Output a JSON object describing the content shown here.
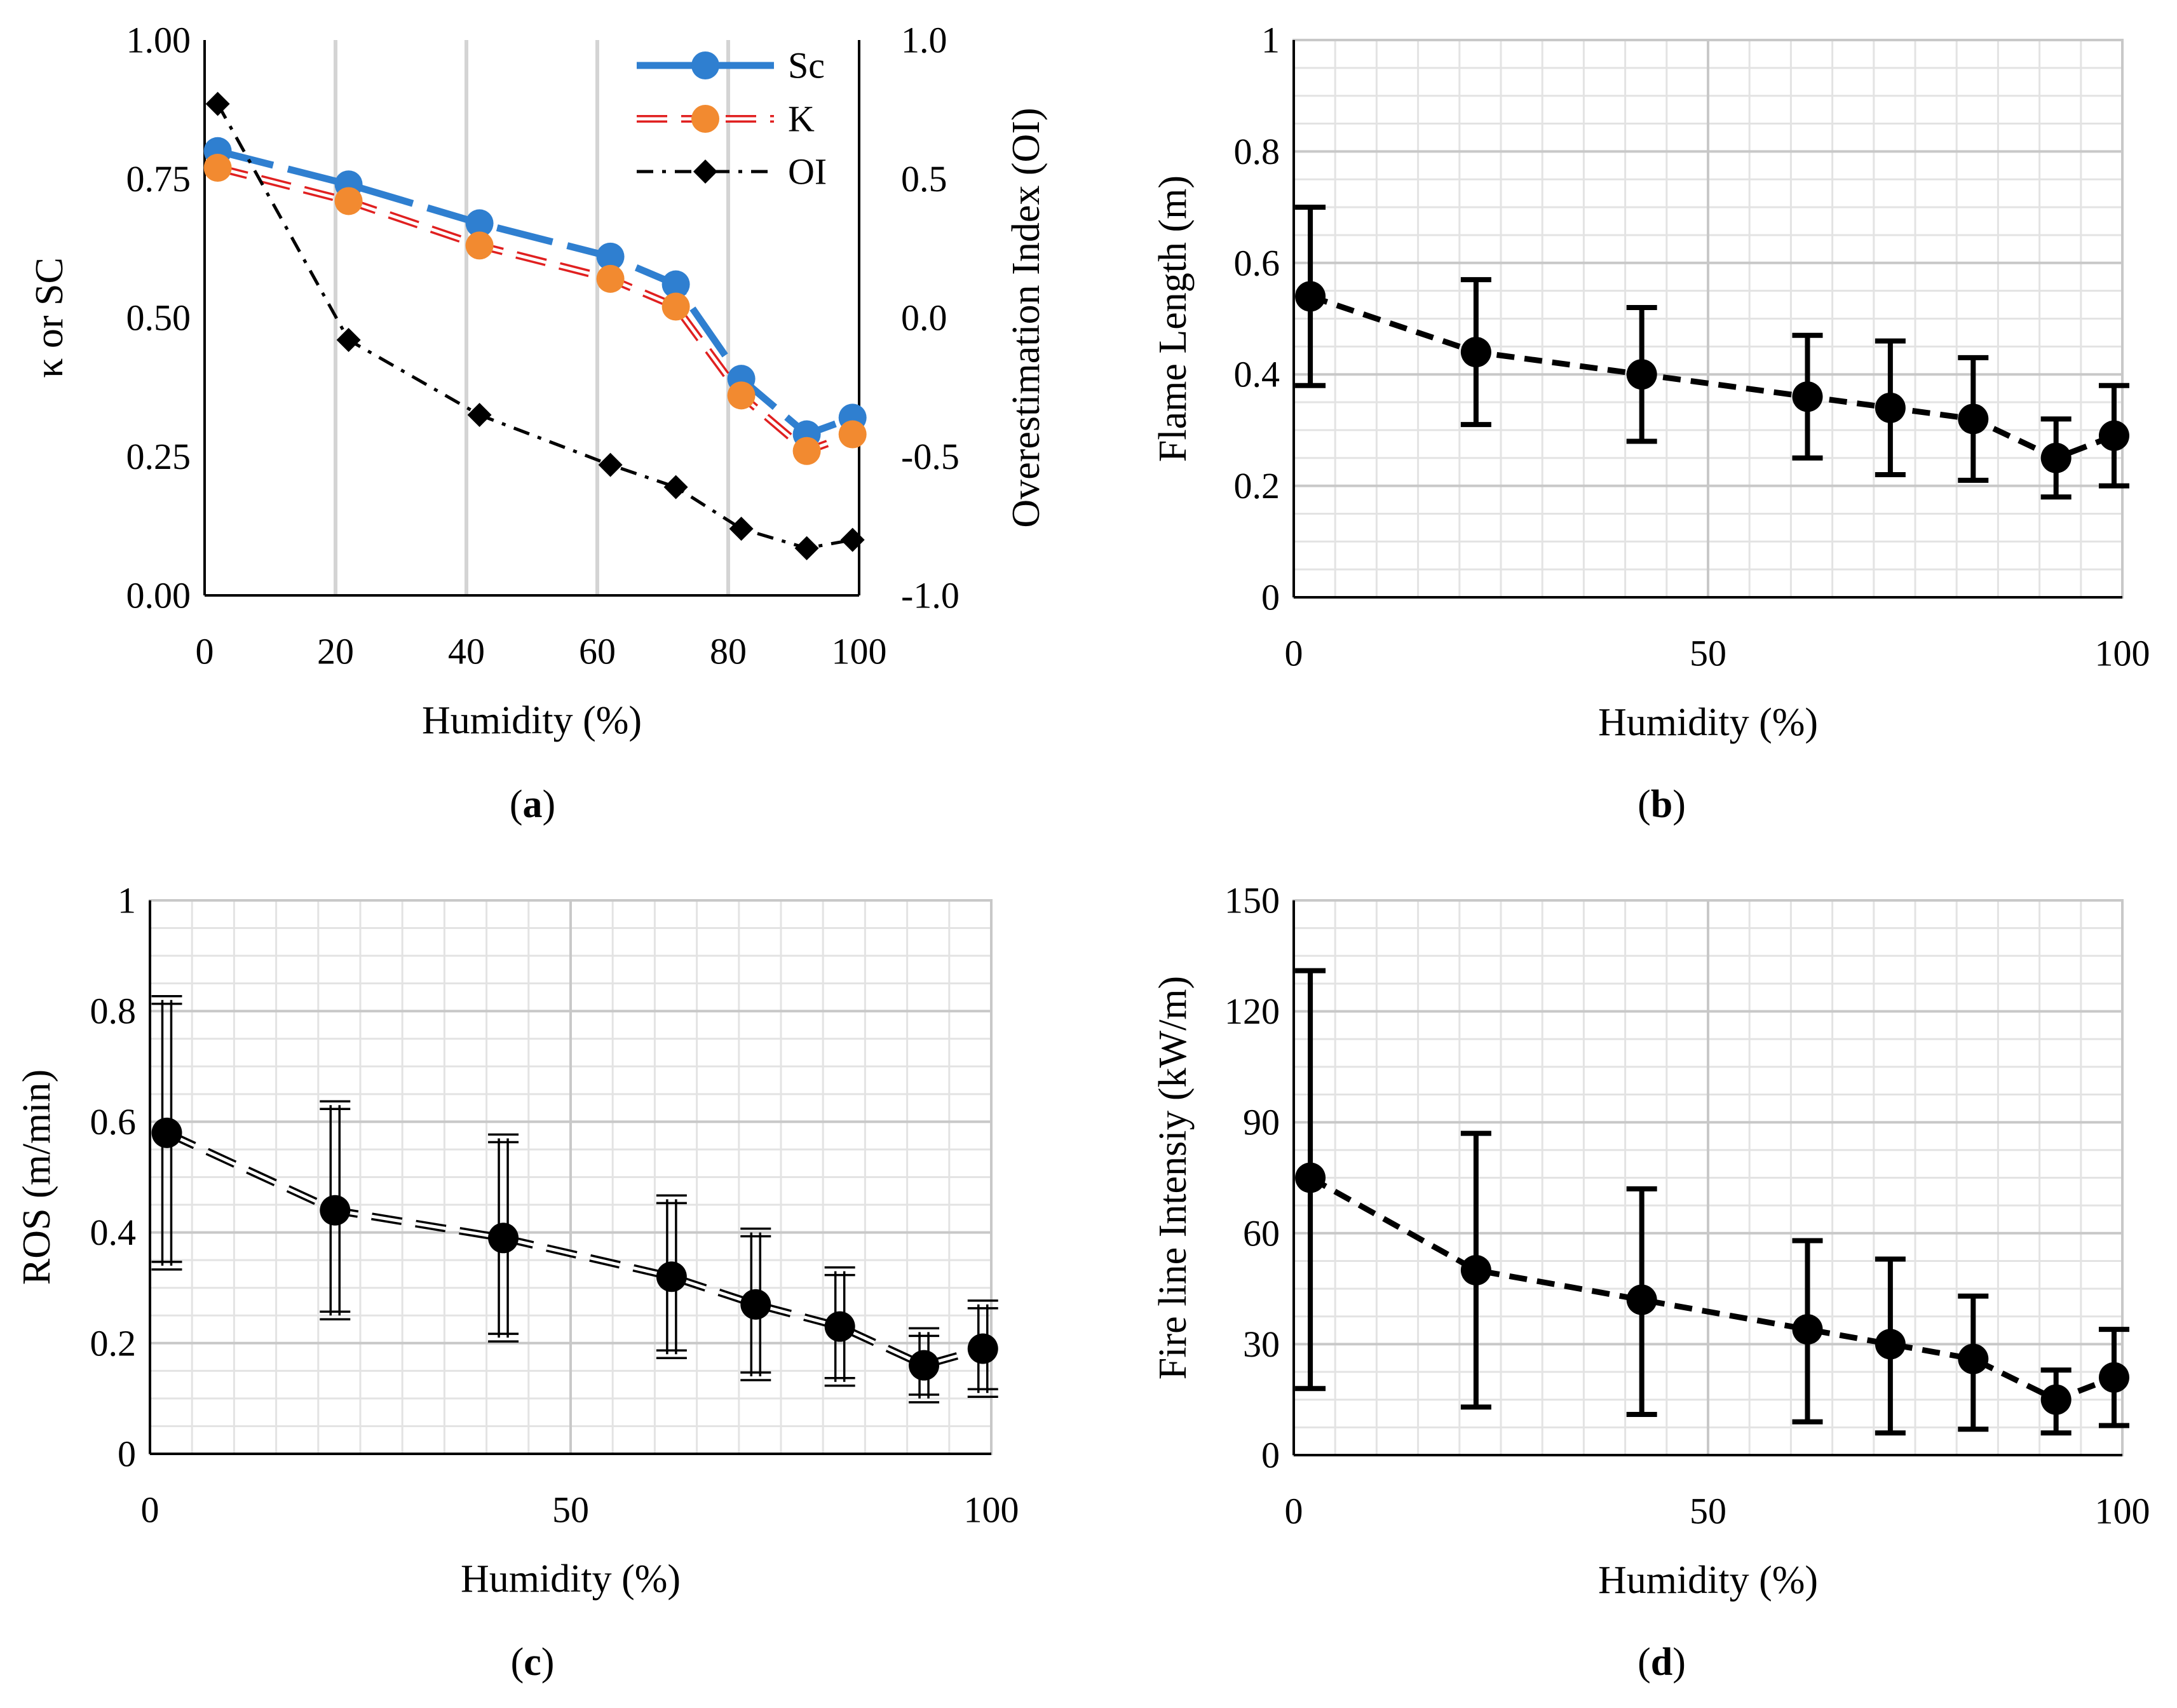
{
  "chart_data": [
    {
      "id": "a",
      "type": "line",
      "caption": "(a)",
      "xlabel": "Humidity (%)",
      "ylabel": "κ or SC",
      "y2label": "Overestimation Index (OI)",
      "xlim": [
        0,
        100
      ],
      "ylim": [
        0,
        1
      ],
      "y2lim": [
        -1,
        1
      ],
      "xticks": [
        0,
        20,
        40,
        60,
        80,
        100
      ],
      "xtick_labels": [
        "0",
        "20",
        "40",
        "60",
        "80",
        "100"
      ],
      "yticks": [
        0,
        0.25,
        0.5,
        0.75,
        1
      ],
      "ytick_labels": [
        "0.00",
        "0.25",
        "0.50",
        "0.75",
        "1.00"
      ],
      "y2ticks": [
        -1,
        -0.5,
        0,
        0.5,
        1
      ],
      "y2tick_labels": [
        "-1.0",
        "-0.5",
        "0.0",
        "0.5",
        "1.0"
      ],
      "x": [
        2,
        22,
        42,
        62,
        72,
        82,
        92,
        99
      ],
      "series": [
        {
          "name": "Sc",
          "axis": "left",
          "color": "#2f7fd0",
          "marker": "circle",
          "line": "long-dash",
          "values": [
            0.8,
            0.74,
            0.67,
            0.61,
            0.56,
            0.39,
            0.29,
            0.32
          ]
        },
        {
          "name": "K",
          "axis": "left",
          "color": "#f28a30",
          "line_color": "#e02020",
          "marker": "circle",
          "line": "double-dash",
          "values": [
            0.77,
            0.71,
            0.63,
            0.57,
            0.52,
            0.36,
            0.26,
            0.29
          ]
        },
        {
          "name": "OI",
          "axis": "right",
          "color": "#000000",
          "marker": "diamond",
          "line": "dash-dot",
          "values": [
            0.77,
            -0.08,
            -0.35,
            -0.53,
            -0.61,
            -0.76,
            -0.83,
            -0.8
          ]
        }
      ],
      "legend": "top-right",
      "grid": "vertical"
    },
    {
      "id": "b",
      "type": "line",
      "caption": "(b)",
      "xlabel": "Humidity (%)",
      "ylabel": "Flame Length (m)",
      "xlim": [
        0,
        100
      ],
      "ylim": [
        0,
        1
      ],
      "xticks": [
        0,
        50,
        100
      ],
      "xtick_labels": [
        "0",
        "50",
        "100"
      ],
      "yticks": [
        0,
        0.2,
        0.4,
        0.6,
        0.8,
        1
      ],
      "ytick_labels": [
        "0",
        "0.2",
        "0.4",
        "0.6",
        "0.8",
        "1"
      ],
      "x": [
        2,
        22,
        42,
        62,
        72,
        82,
        92,
        99
      ],
      "series": [
        {
          "name": "Flame Length",
          "color": "#000000",
          "marker": "circle",
          "line": "dash",
          "values": [
            0.54,
            0.44,
            0.4,
            0.36,
            0.34,
            0.32,
            0.25,
            0.29
          ],
          "err_low": [
            0.38,
            0.31,
            0.28,
            0.25,
            0.22,
            0.21,
            0.18,
            0.2
          ],
          "err_high": [
            0.7,
            0.57,
            0.52,
            0.47,
            0.46,
            0.43,
            0.32,
            0.38
          ]
        }
      ],
      "grid": "major-minor"
    },
    {
      "id": "c",
      "type": "line",
      "caption": "(c)",
      "xlabel": "Humidity (%)",
      "ylabel": "ROS (m/min)",
      "xlim": [
        0,
        100
      ],
      "ylim": [
        0,
        1
      ],
      "xticks": [
        0,
        50,
        100
      ],
      "xtick_labels": [
        "0",
        "50",
        "100"
      ],
      "yticks": [
        0,
        0.2,
        0.4,
        0.6,
        0.8,
        1
      ],
      "ytick_labels": [
        "0",
        "0.2",
        "0.4",
        "0.6",
        "0.8",
        "1"
      ],
      "x": [
        2,
        22,
        42,
        62,
        72,
        82,
        92,
        99
      ],
      "series": [
        {
          "name": "ROS",
          "color": "#000000",
          "marker": "circle",
          "line": "double-dash",
          "values": [
            0.58,
            0.44,
            0.39,
            0.32,
            0.27,
            0.23,
            0.16,
            0.19
          ],
          "err_low": [
            0.34,
            0.25,
            0.21,
            0.18,
            0.14,
            0.13,
            0.1,
            0.11
          ],
          "err_high": [
            0.82,
            0.63,
            0.57,
            0.46,
            0.4,
            0.33,
            0.22,
            0.27
          ]
        }
      ],
      "grid": "major-minor"
    },
    {
      "id": "d",
      "type": "line",
      "caption": "(d)",
      "xlabel": "Humidity (%)",
      "ylabel": "Fire line Intensiy (kW/m)",
      "xlim": [
        0,
        100
      ],
      "ylim": [
        0,
        150
      ],
      "xticks": [
        0,
        50,
        100
      ],
      "xtick_labels": [
        "0",
        "50",
        "100"
      ],
      "yticks": [
        0,
        30,
        60,
        90,
        120,
        150
      ],
      "ytick_labels": [
        "0",
        "30",
        "60",
        "90",
        "120",
        "150"
      ],
      "x": [
        2,
        22,
        42,
        62,
        72,
        82,
        92,
        99
      ],
      "series": [
        {
          "name": "Fire line Intensity",
          "color": "#000000",
          "marker": "circle",
          "line": "dash",
          "values": [
            75,
            50,
            42,
            34,
            30,
            26,
            15,
            21
          ],
          "err_low": [
            18,
            13,
            11,
            9,
            6,
            7,
            6,
            8
          ],
          "err_high": [
            131,
            87,
            72,
            58,
            53,
            43,
            23,
            34
          ]
        }
      ],
      "grid": "major-minor"
    }
  ]
}
